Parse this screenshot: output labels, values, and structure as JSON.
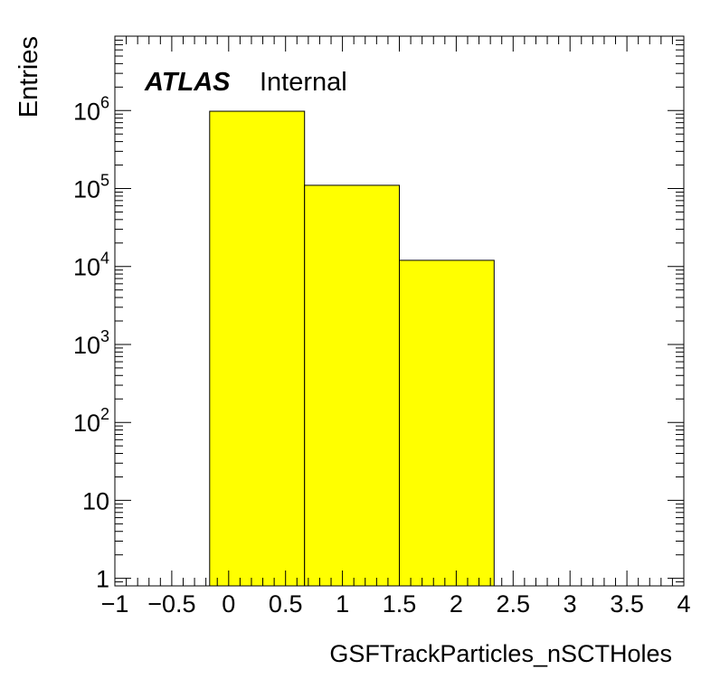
{
  "colors": {
    "background": "#ffffff",
    "bar_fill": "#ffff00",
    "bar_stroke": "#000000",
    "axis": "#000000"
  },
  "chart_data": {
    "type": "bar",
    "histogram": true,
    "xlabel": "GSFTrackParticles_nSCTHoles",
    "ylabel": "Entries",
    "yscale": "log",
    "xlim": [
      -1,
      4
    ],
    "ylim": [
      0.8,
      9000000
    ],
    "grid": false,
    "legend": "none",
    "bins": [
      {
        "low": -0.167,
        "high": 0.667,
        "value": 980000
      },
      {
        "low": 0.667,
        "high": 1.5,
        "value": 110000
      },
      {
        "low": 1.5,
        "high": 2.333,
        "value": 12000
      }
    ],
    "x_ticks": [
      {
        "value": -1,
        "label": "−1"
      },
      {
        "value": -0.5,
        "label": "−0.5"
      },
      {
        "value": 0,
        "label": "0"
      },
      {
        "value": 0.5,
        "label": "0.5"
      },
      {
        "value": 1,
        "label": "1"
      },
      {
        "value": 1.5,
        "label": "1.5"
      },
      {
        "value": 2,
        "label": "2"
      },
      {
        "value": 2.5,
        "label": "2.5"
      },
      {
        "value": 3,
        "label": "3"
      },
      {
        "value": 3.5,
        "label": "3.5"
      },
      {
        "value": 4,
        "label": "4"
      }
    ],
    "y_ticks": [
      {
        "value": 1,
        "base": "1",
        "exp": ""
      },
      {
        "value": 10,
        "base": "10",
        "exp": ""
      },
      {
        "value": 100,
        "base": "10",
        "exp": "2"
      },
      {
        "value": 1000,
        "base": "10",
        "exp": "3"
      },
      {
        "value": 10000,
        "base": "10",
        "exp": "4"
      },
      {
        "value": 100000,
        "base": "10",
        "exp": "5"
      },
      {
        "value": 1000000,
        "base": "10",
        "exp": "6"
      }
    ],
    "annotations": {
      "experiment": "ATLAS",
      "status": "Internal"
    }
  }
}
